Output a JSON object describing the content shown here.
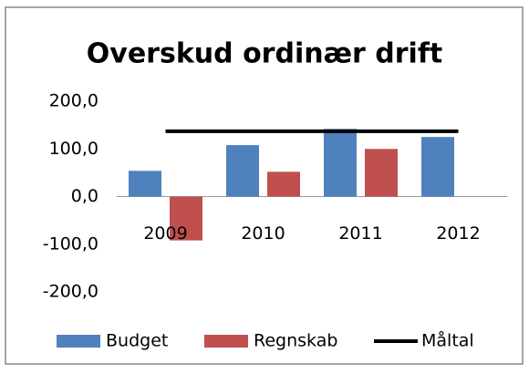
{
  "chart_data": {
    "type": "bar",
    "title": "Overskud ordinær drift",
    "categories": [
      "2009",
      "2010",
      "2011",
      "2012"
    ],
    "series": [
      {
        "name": "Budget",
        "color": "#4f81bd",
        "values": [
          54,
          108,
          142,
          125
        ]
      },
      {
        "name": "Regnskab",
        "color": "#c0504d",
        "values": [
          -92,
          52,
          100,
          null
        ]
      },
      {
        "name": "Måltal",
        "type": "line",
        "color": "#000000",
        "values": [
          137,
          137,
          137,
          137
        ]
      }
    ],
    "ylim": [
      -200,
      200
    ],
    "yticks": [
      {
        "value": -200,
        "label": "-200,0"
      },
      {
        "value": -100,
        "label": "-100,0"
      },
      {
        "value": 0,
        "label": "0,0"
      },
      {
        "value": 100,
        "label": "100,0"
      },
      {
        "value": 200,
        "label": "200,0"
      }
    ],
    "grid": false,
    "legend": "bottom"
  }
}
